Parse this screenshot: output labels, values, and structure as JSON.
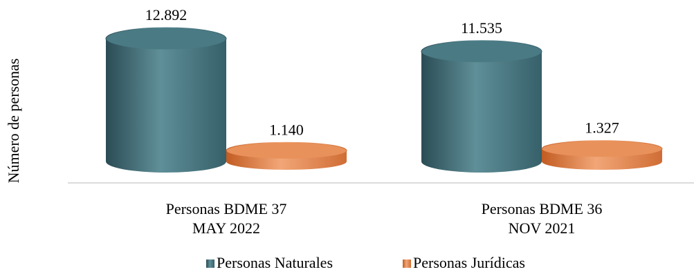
{
  "chart_data": {
    "type": "cylinder_bar",
    "y_label": "Número de personas",
    "categories": [
      [
        "Personas BDME 37",
        "MAY 2022"
      ],
      [
        "Personas BDME 36",
        "NOV 2021"
      ]
    ],
    "series": [
      {
        "name": "Personas Naturales",
        "color": "#4a7a84",
        "values": [
          12892,
          11535
        ],
        "value_labels": [
          "12.892",
          "11.535"
        ]
      },
      {
        "name": "Personas Jurídicas",
        "color": "#e8915a",
        "values": [
          1140,
          1327
        ],
        "value_labels": [
          "1.140",
          "1.327"
        ]
      }
    ],
    "legend": "bottom"
  }
}
